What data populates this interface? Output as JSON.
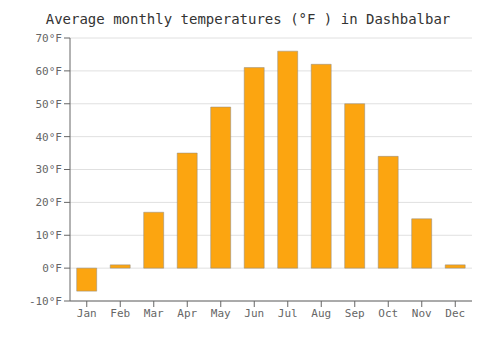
{
  "chart_data": {
    "type": "bar",
    "title": "Average monthly temperatures (°F ) in Dashbalbar",
    "categories": [
      "Jan",
      "Feb",
      "Mar",
      "Apr",
      "May",
      "Jun",
      "Jul",
      "Aug",
      "Sep",
      "Oct",
      "Nov",
      "Dec"
    ],
    "values": [
      -7,
      1,
      17,
      35,
      49,
      61,
      66,
      62,
      50,
      34,
      15,
      1
    ],
    "color": "#FCA510",
    "ylim": [
      -10,
      70
    ],
    "yticks": [
      {
        "value": -10,
        "label": "-10°F"
      },
      {
        "value": 0,
        "label": "0°F"
      },
      {
        "value": 10,
        "label": "10°F"
      },
      {
        "value": 20,
        "label": "20°F"
      },
      {
        "value": 30,
        "label": "30°F"
      },
      {
        "value": 40,
        "label": "40°F"
      },
      {
        "value": 50,
        "label": "50°F"
      },
      {
        "value": 60,
        "label": "60°F"
      },
      {
        "value": 70,
        "label": "70°F"
      }
    ],
    "grid": true
  }
}
